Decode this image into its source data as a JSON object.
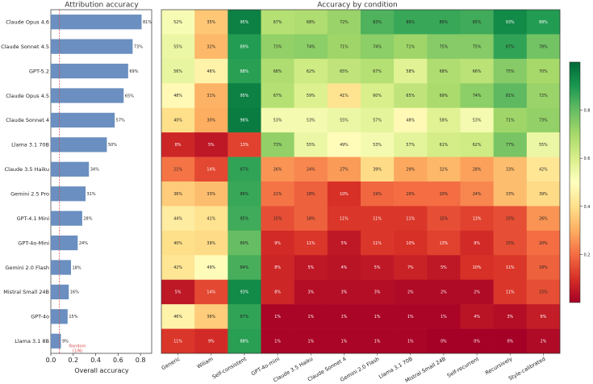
{
  "left_panel": {
    "title": "Attribution accuracy",
    "xlabel": "Overall accuracy",
    "random_label": [
      "Random",
      "(1/N)"
    ]
  },
  "right_panel": {
    "title": "Accuracy by condition"
  },
  "colors": {
    "bar": "#6a8fc0",
    "random_line": "#d94b4b"
  },
  "chart_data": [
    {
      "type": "bar",
      "orientation": "horizontal",
      "title": "Attribution accuracy",
      "xlabel": "Overall accuracy",
      "xlim": [
        0,
        0.9
      ],
      "xticks": [
        "0.0",
        "0.2",
        "0.4",
        "0.6",
        "0.8"
      ],
      "random_baseline": 0.077,
      "categories": [
        "Claude Opus 4.6",
        "Claude Sonnet 4.5",
        "GPT-5.2",
        "Claude Opus 4.5",
        "Claude Sonnet 4",
        "Llama 3.1 70B",
        "Claude 3.5 Haiku",
        "Gemini 2.5 Pro",
        "GPT-4.1 Mini",
        "GPT-4o-Mini",
        "Gemini 2.0 Flash",
        "Mistral Small 24B",
        "GPT-4o",
        "Llama 3.1 8B"
      ],
      "values": [
        0.81,
        0.73,
        0.69,
        0.65,
        0.57,
        0.5,
        0.34,
        0.31,
        0.28,
        0.24,
        0.18,
        0.16,
        0.15,
        0.09
      ],
      "labels": [
        "81%",
        "73%",
        "69%",
        "65%",
        "57%",
        "50%",
        "34%",
        "31%",
        "28%",
        "24%",
        "18%",
        "16%",
        "15%",
        "9%"
      ]
    },
    {
      "type": "heatmap",
      "title": "Accuracy by condition",
      "columns": [
        "Generic",
        "Wiliam",
        "Self-consistent",
        "GPT-4o-mini",
        "Claude 3.5 Haiku",
        "Claude Sonnet 4",
        "Gemini 2.0 Flash",
        "Llama 3.1 70B",
        "Mistral Small 24B",
        "Self-recurrent",
        "Recursively",
        "Style-calibrated"
      ],
      "rows": [
        "Claude Opus 4.6",
        "Claude Sonnet 4.5",
        "GPT-5.2",
        "Claude Opus 4.5",
        "Claude Sonnet 4",
        "Llama 3.1 70B",
        "Claude 3.5 Haiku",
        "Gemini 2.5 Pro",
        "GPT-4.1 Mini",
        "GPT-4o-Mini",
        "Gemini 2.0 Flash",
        "Mistral Small 24B",
        "GPT-4o",
        "Llama 3.1 8B"
      ],
      "values": [
        [
          52,
          35,
          95,
          67,
          68,
          72,
          83,
          86,
          86,
          85,
          93,
          89
        ],
        [
          55,
          32,
          89,
          73,
          74,
          71,
          74,
          71,
          75,
          75,
          87,
          78
        ],
        [
          56,
          46,
          88,
          68,
          62,
          65,
          67,
          58,
          68,
          66,
          75,
          70
        ],
        [
          48,
          31,
          95,
          67,
          59,
          41,
          60,
          65,
          69,
          74,
          81,
          72
        ],
        [
          40,
          30,
          96,
          53,
          53,
          55,
          57,
          48,
          58,
          53,
          71,
          73
        ],
        [
          8,
          5,
          13,
          73,
          55,
          49,
          53,
          57,
          61,
          62,
          77,
          55
        ],
        [
          21,
          14,
          87,
          26,
          24,
          27,
          39,
          29,
          32,
          28,
          33,
          42
        ],
        [
          36,
          33,
          86,
          21,
          18,
          10,
          19,
          20,
          20,
          24,
          33,
          39
        ],
        [
          44,
          41,
          85,
          15,
          18,
          11,
          11,
          11,
          15,
          13,
          15,
          26
        ],
        [
          40,
          39,
          80,
          9,
          11,
          5,
          11,
          10,
          13,
          9,
          15,
          20
        ],
        [
          42,
          49,
          84,
          8,
          5,
          4,
          5,
          7,
          5,
          10,
          11,
          18
        ],
        [
          5,
          14,
          93,
          8,
          3,
          3,
          3,
          2,
          2,
          2,
          11,
          15
        ],
        [
          46,
          36,
          87,
          1,
          1,
          1,
          1,
          1,
          1,
          4,
          3,
          6
        ],
        [
          11,
          9,
          88,
          1,
          1,
          1,
          1,
          1,
          0,
          0,
          0,
          2
        ]
      ],
      "colorbar": {
        "ticks": [
          "0.2",
          "0.4",
          "0.6",
          "0.8"
        ],
        "range": [
          0,
          1
        ],
        "colormap": "RdYlGn"
      }
    }
  ]
}
